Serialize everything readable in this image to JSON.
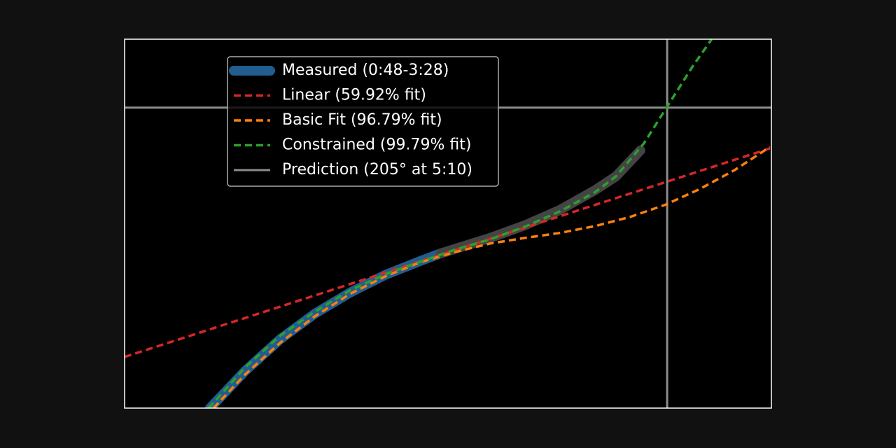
{
  "chart_data": {
    "type": "line",
    "xlim": [
      65.4,
      357
    ],
    "ylim": [
      60,
      238
    ],
    "reference_lines": {
      "name": "Prediction (205° at 5:10)",
      "color": "#8c8c8c",
      "x": 310,
      "y": 205
    },
    "series": [
      {
        "name": "Measured (0:48-3:28)",
        "color": "#215d8f",
        "style": "solid",
        "width": 14,
        "x": [
          103.9,
          119.7,
          135.4,
          151.2,
          167,
          182.8,
          198.5,
          208
        ],
        "values": [
          60,
          77.9,
          93.1,
          105.6,
          115.7,
          124.2,
          130.9,
          134.7
        ]
      },
      {
        "color": "#444444",
        "style": "solid",
        "width": 14,
        "x": [
          208,
          230.1,
          245.8,
          261.6,
          277.4,
          286.9,
          297.9
        ],
        "values": [
          134.7,
          142.1,
          148.2,
          155.6,
          165.1,
          171.8,
          184.3
        ]
      },
      {
        "name": "Linear (59.92% fit)",
        "color": "#d62728",
        "style": "dashed",
        "width": 3.5,
        "x": [
          65.4,
          356.3
        ],
        "values": [
          84.7,
          185.3
        ]
      },
      {
        "name": "Basic Fit (96.79% fit)",
        "color": "#ff7f0e",
        "style": "dashed",
        "width": 3.5,
        "x": [
          105.5,
          119.7,
          135.4,
          151.2,
          167,
          182.8,
          198.5,
          214.3,
          230.1,
          245.8,
          261.6,
          277.4,
          293.2,
          308.9,
          324.7,
          340.5,
          356.3
        ],
        "values": [
          60,
          76.2,
          91.4,
          104.3,
          115.1,
          123.5,
          130.3,
          135.3,
          139.4,
          142.1,
          144.5,
          147.8,
          152.2,
          158,
          165.7,
          174.9,
          186
        ]
      },
      {
        "name": "Constrained (99.79% fit)",
        "color": "#2ca02c",
        "style": "dashed",
        "width": 3.5,
        "x": [
          103.3,
          119.7,
          135.4,
          151.2,
          167,
          182.8,
          198.5,
          214.3,
          230.1,
          245.8,
          261.6,
          277.4,
          286.9,
          299.5,
          310.5,
          321.5,
          330.1
        ],
        "values": [
          60,
          79.6,
          94.8,
          106.6,
          116.8,
          124.5,
          130.6,
          136.4,
          141.4,
          147.5,
          154.9,
          164.1,
          171.8,
          187.7,
          206.3,
          224.9,
          238
        ]
      }
    ]
  }
}
